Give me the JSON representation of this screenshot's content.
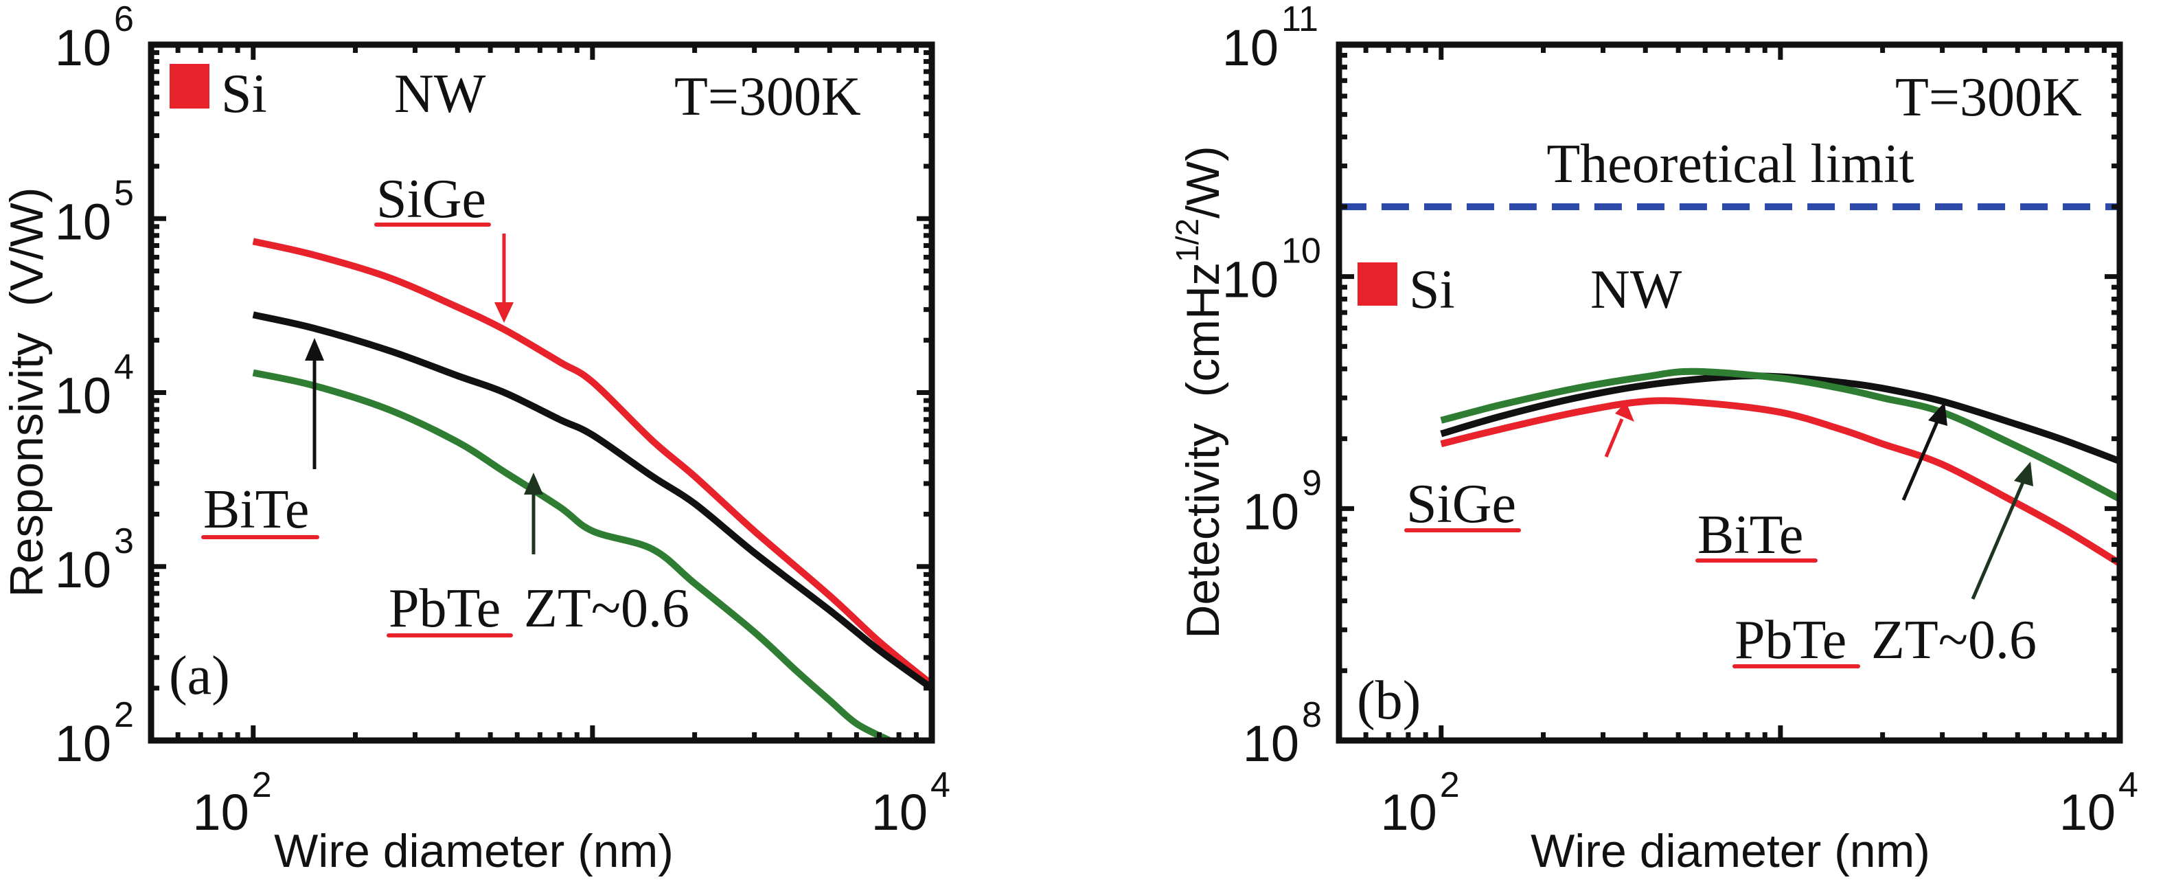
{
  "chart_data": [
    {
      "panel": "(a)",
      "type": "line",
      "xscale": "log",
      "yscale": "log",
      "xlabel": "Wire diameter (nm)",
      "ylabel": "Responsivity  (V/W)",
      "xlim": [
        50,
        10000
      ],
      "ylim": [
        100,
        1000000
      ],
      "xticks": [
        {
          "base": "10",
          "exp": "2",
          "value": 100
        },
        {
          "base": "10",
          "exp": "4",
          "value": 10000
        }
      ],
      "yticks": [
        {
          "base": "10",
          "exp": "2",
          "value": 100
        },
        {
          "base": "10",
          "exp": "3",
          "value": 1000
        },
        {
          "base": "10",
          "exp": "4",
          "value": 10000
        },
        {
          "base": "10",
          "exp": "5",
          "value": 100000
        },
        {
          "base": "10",
          "exp": "6",
          "value": 1000000
        }
      ],
      "grid": false,
      "series": [
        {
          "name": "SiGe",
          "color": "#e8222b",
          "x": [
            100,
            150,
            250,
            400,
            550,
            800,
            1000,
            1500,
            2000,
            3000,
            5000,
            7000,
            10000
          ],
          "y": [
            74000,
            62000,
            46000,
            31000,
            23000,
            15000,
            11500,
            5300,
            3300,
            1600,
            680,
            370,
            210
          ]
        },
        {
          "name": "BiTe",
          "color": "#111111",
          "x": [
            100,
            150,
            250,
            400,
            550,
            800,
            1000,
            1500,
            2000,
            3000,
            5000,
            7000,
            10000
          ],
          "y": [
            28000,
            23500,
            17500,
            12500,
            10000,
            7000,
            5700,
            3300,
            2300,
            1200,
            560,
            330,
            200
          ]
        },
        {
          "name": "PbTe ZT~0.6",
          "color": "#2e7d32",
          "x": [
            100,
            150,
            250,
            400,
            550,
            800,
            1000,
            1500,
            2000,
            3000,
            4000,
            5000,
            6000,
            7500
          ],
          "y": [
            13000,
            11000,
            8000,
            5200,
            3500,
            2200,
            1600,
            1260,
            800,
            420,
            250,
            170,
            125,
            100
          ]
        }
      ],
      "annotations": {
        "legend_square_label": "Si",
        "nw_label": "NW",
        "temperature": "T=300K",
        "sige_label": "SiGe",
        "bite_label": "BiTe",
        "pbte_label": "PbTe",
        "zt_label": "ZT~0.6",
        "panel_label": "(a)"
      }
    },
    {
      "panel": "(b)",
      "type": "line",
      "xscale": "log",
      "yscale": "log",
      "xlabel": "Wire diameter (nm)",
      "ylabel": "Detectivity  (cmHz",
      "ylabel_sup": "1/2",
      "ylabel_tail": "/W)",
      "xlim": [
        50,
        10000
      ],
      "ylim": [
        100000000,
        100000000000
      ],
      "xticks": [
        {
          "base": "10",
          "exp": "2",
          "value": 100
        },
        {
          "base": "10",
          "exp": "4",
          "value": 10000
        }
      ],
      "yticks": [
        {
          "base": "10",
          "exp": "8",
          "value": 100000000
        },
        {
          "base": "10",
          "exp": "9",
          "value": 1000000000
        },
        {
          "base": "10",
          "exp": "10",
          "value": 10000000000
        },
        {
          "base": "10",
          "exp": "11",
          "value": 100000000000
        }
      ],
      "grid": false,
      "series": [
        {
          "name": "SiGe",
          "color": "#e8222b",
          "x": [
            100,
            150,
            250,
            400,
            600,
            1000,
            1500,
            2000,
            3000,
            5000,
            7000,
            10000
          ],
          "y": [
            1900000000.0,
            2200000000.0,
            2600000000.0,
            2900000000.0,
            2850000000.0,
            2600000000.0,
            2200000000.0,
            1900000000.0,
            1550000000.0,
            1050000000.0,
            800000000.0,
            580000000.0
          ]
        },
        {
          "name": "BiTe",
          "color": "#111111",
          "x": [
            100,
            150,
            250,
            400,
            700,
            1000,
            1500,
            2000,
            3000,
            5000,
            7000,
            10000
          ],
          "y": [
            2100000000.0,
            2500000000.0,
            3000000000.0,
            3400000000.0,
            3700000000.0,
            3700000000.0,
            3500000000.0,
            3300000000.0,
            2900000000.0,
            2300000000.0,
            1950000000.0,
            1600000000.0
          ]
        },
        {
          "name": "PbTe ZT~0.6",
          "color": "#2e7d32",
          "x": [
            100,
            150,
            250,
            400,
            560,
            1000,
            1500,
            2000,
            3000,
            5000,
            7000,
            10000
          ],
          "y": [
            2400000000.0,
            2800000000.0,
            3300000000.0,
            3700000000.0,
            3900000000.0,
            3650000000.0,
            3300000000.0,
            3000000000.0,
            2600000000.0,
            1850000000.0,
            1450000000.0,
            1100000000.0
          ]
        },
        {
          "name": "Theoretical limit",
          "color": "#2e4aa8",
          "style": "dashed",
          "x": [
            50,
            10000
          ],
          "y": [
            20000000000.0,
            20000000000.0
          ]
        }
      ],
      "annotations": {
        "theoretical_limit": "Theoretical limit",
        "legend_square_label": "Si",
        "nw_label": "NW",
        "temperature": "T=300K",
        "sige_label": "SiGe",
        "bite_label": "BiTe",
        "pbte_label": "PbTe",
        "zt_label": "ZT~0.6",
        "panel_label": "(b)"
      }
    }
  ],
  "colors": {
    "accent_red": "#e8222b",
    "frame": "#111111",
    "theoretical_line": "#2e4aa8"
  }
}
